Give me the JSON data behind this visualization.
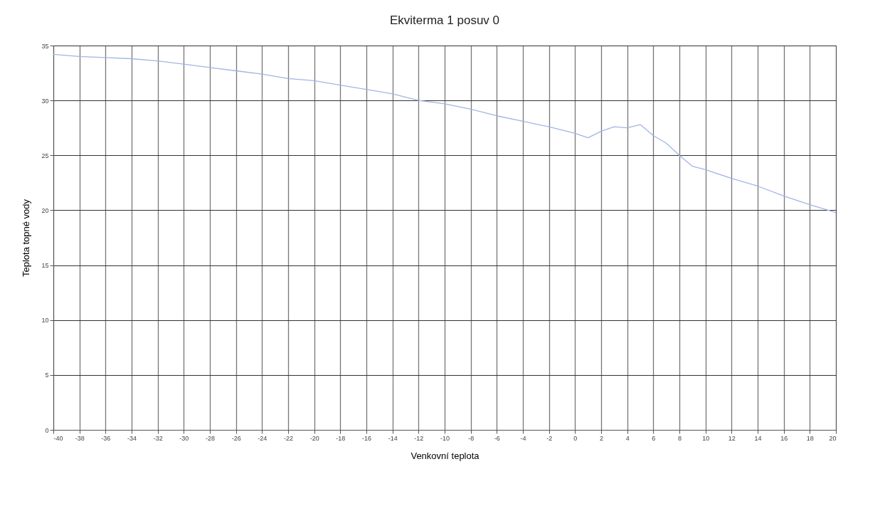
{
  "chart_data": {
    "type": "line",
    "title": "Ekviterma 1 posuv 0",
    "xlabel": "Venkovní teplota",
    "ylabel": "Teplota topné vody",
    "x": [
      -40,
      -38,
      -36,
      -34,
      -32,
      -30,
      -28,
      -26,
      -24,
      -22,
      -20,
      -18,
      -16,
      -14,
      -12,
      -10,
      -8,
      -6,
      -4,
      -2,
      0,
      1,
      2,
      3,
      4,
      5,
      6,
      7,
      8,
      9,
      10,
      12,
      14,
      16,
      18,
      20
    ],
    "series": [
      {
        "color": "#9fb6e6",
        "values": [
          34.2,
          34.0,
          33.9,
          33.8,
          33.6,
          33.3,
          33.0,
          32.7,
          32.4,
          32.0,
          31.8,
          31.4,
          31.0,
          30.6,
          30.0,
          29.7,
          29.2,
          28.6,
          28.1,
          27.6,
          27.0,
          26.6,
          27.2,
          27.6,
          27.5,
          27.8,
          26.8,
          26.1,
          25.0,
          24.0,
          23.7,
          22.9,
          22.2,
          21.3,
          20.5,
          19.8
        ]
      }
    ],
    "xlim": [
      -40,
      20
    ],
    "xticks": [
      -40,
      -38,
      -36,
      -34,
      -32,
      -30,
      -28,
      -26,
      -24,
      -22,
      -20,
      -18,
      -16,
      -14,
      -12,
      -10,
      -8,
      -6,
      -4,
      -2,
      0,
      2,
      4,
      6,
      8,
      10,
      12,
      14,
      16,
      18,
      20
    ],
    "ylim": [
      0,
      35
    ],
    "yticks": [
      0,
      5,
      10,
      15,
      20,
      25,
      30,
      35
    ],
    "grid": true,
    "marker": "none",
    "line_style": "solid"
  }
}
